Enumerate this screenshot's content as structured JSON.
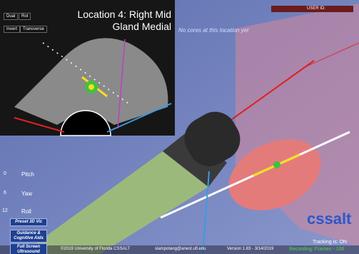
{
  "toolbar": {
    "buttons": [
      "Dual",
      "Rot",
      "Invert",
      "Transverse"
    ]
  },
  "location": {
    "title_line1": "Location 4: Right Mid",
    "title_line2": "Gland Medial",
    "status": "No cores at this location yet"
  },
  "user": {
    "label": "USER ID:"
  },
  "orientation": {
    "controls": [
      {
        "tick": 0,
        "label": "Pitch"
      },
      {
        "tick": 6,
        "label": "Yaw"
      },
      {
        "tick": 12,
        "label": "Roll"
      }
    ]
  },
  "menu": {
    "buttons": [
      "Preset 3D Viz",
      "Guidance & Cognitive Aids",
      "Full Screen Ultrasound"
    ]
  },
  "logo": {
    "name": "cssalt"
  },
  "status": {
    "tracking": "Tracking is: ON",
    "recording": "Recording: Frames - 106"
  },
  "footer": {
    "copyright": "©2019 University of Florida CSSALT",
    "email": "slampotang@anest.ufl.edu",
    "version": "Version 1.83 - 3/14/2019"
  }
}
